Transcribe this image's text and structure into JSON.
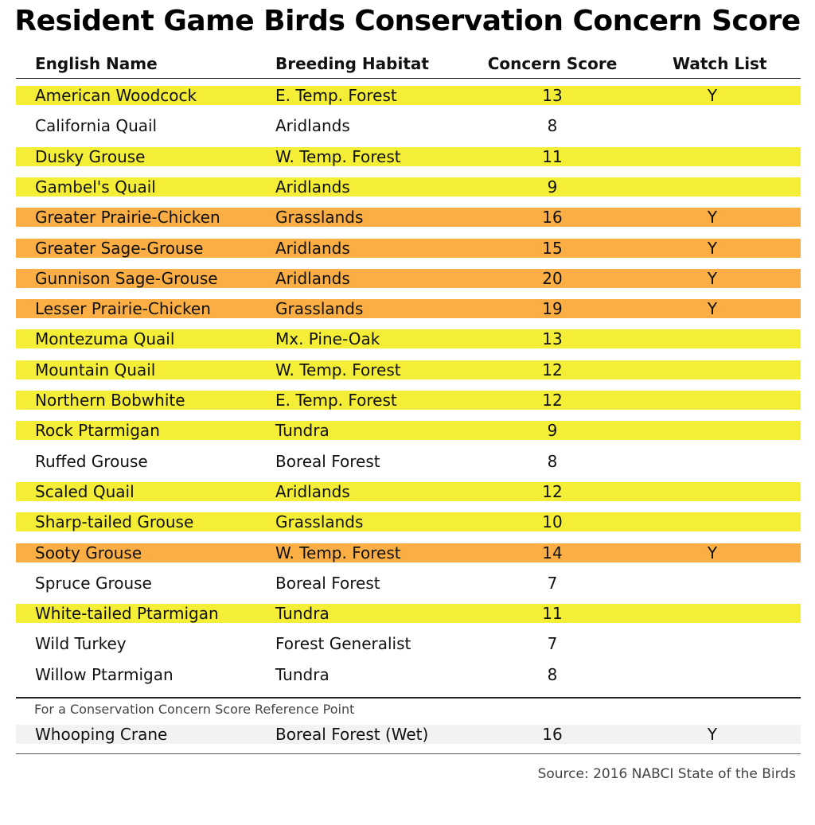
{
  "colors": {
    "watch": "#FAAE44",
    "yellow": "#F5EE36",
    "plain": "#FFFFFF",
    "reference": "#F2F2F2"
  },
  "chart_data": {
    "type": "table",
    "title": "Resident Game Birds Conservation Concern Score",
    "columns": [
      "English Name",
      "Breeding Habitat",
      "Concern Score",
      "Watch List"
    ],
    "rows": [
      {
        "name": "American Woodcock",
        "habitat": "E. Temp. Forest",
        "score": "13",
        "watch": "Y",
        "highlight": "yellow"
      },
      {
        "name": "California Quail",
        "habitat": "Aridlands",
        "score": "8",
        "watch": "",
        "highlight": "plain"
      },
      {
        "name": "Dusky Grouse",
        "habitat": "W. Temp. Forest",
        "score": "11",
        "watch": "",
        "highlight": "yellow"
      },
      {
        "name": "Gambel's Quail",
        "habitat": "Aridlands",
        "score": "9",
        "watch": "",
        "highlight": "yellow"
      },
      {
        "name": "Greater Prairie-Chicken",
        "habitat": "Grasslands",
        "score": "16",
        "watch": "Y",
        "highlight": "watch"
      },
      {
        "name": "Greater Sage-Grouse",
        "habitat": "Aridlands",
        "score": "15",
        "watch": "Y",
        "highlight": "watch"
      },
      {
        "name": "Gunnison Sage-Grouse",
        "habitat": "Aridlands",
        "score": "20",
        "watch": "Y",
        "highlight": "watch"
      },
      {
        "name": "Lesser Prairie-Chicken",
        "habitat": "Grasslands",
        "score": "19",
        "watch": "Y",
        "highlight": "watch"
      },
      {
        "name": "Montezuma Quail",
        "habitat": "Mx. Pine-Oak",
        "score": "13",
        "watch": "",
        "highlight": "yellow"
      },
      {
        "name": "Mountain Quail",
        "habitat": "W. Temp. Forest",
        "score": "12",
        "watch": "",
        "highlight": "yellow"
      },
      {
        "name": "Northern Bobwhite",
        "habitat": "E. Temp. Forest",
        "score": "12",
        "watch": "",
        "highlight": "yellow"
      },
      {
        "name": "Rock Ptarmigan",
        "habitat": "Tundra",
        "score": "9",
        "watch": "",
        "highlight": "yellow"
      },
      {
        "name": "Ruffed Grouse",
        "habitat": "Boreal Forest",
        "score": "8",
        "watch": "",
        "highlight": "plain"
      },
      {
        "name": "Scaled Quail",
        "habitat": "Aridlands",
        "score": "12",
        "watch": "",
        "highlight": "yellow"
      },
      {
        "name": "Sharp-tailed Grouse",
        "habitat": "Grasslands",
        "score": "10",
        "watch": "",
        "highlight": "yellow"
      },
      {
        "name": "Sooty Grouse",
        "habitat": "W. Temp. Forest",
        "score": "14",
        "watch": "Y",
        "highlight": "watch"
      },
      {
        "name": "Spruce Grouse",
        "habitat": "Boreal Forest",
        "score": "7",
        "watch": "",
        "highlight": "plain"
      },
      {
        "name": "White-tailed Ptarmigan",
        "habitat": "Tundra",
        "score": "11",
        "watch": "",
        "highlight": "yellow"
      },
      {
        "name": "Wild Turkey",
        "habitat": "Forest Generalist",
        "score": "7",
        "watch": "",
        "highlight": "plain"
      },
      {
        "name": "Willow Ptarmigan",
        "habitat": "Tundra",
        "score": "8",
        "watch": "",
        "highlight": "plain"
      }
    ],
    "reference_note": "For a Conservation Concern Score Reference Point",
    "reference_row": {
      "name": "Whooping Crane",
      "habitat": "Boreal Forest (Wet)",
      "score": "16",
      "watch": "Y",
      "highlight": "reference"
    },
    "source": "Source: 2016 NABCI State of the Birds"
  }
}
